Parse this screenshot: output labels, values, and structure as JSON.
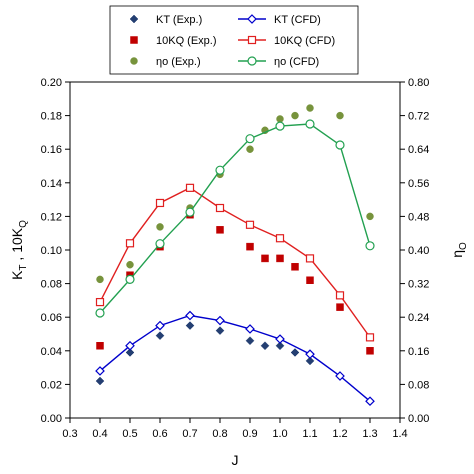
{
  "chart_data": {
    "type": "line",
    "xlabel": "J",
    "ylabel_left": "K",
    "ylabel_left_sub1": "T",
    "ylabel_left_mid": " , 10K",
    "ylabel_left_sub2": "Q",
    "ylabel_right": "η",
    "ylabel_right_sub": "O",
    "xlim": [
      0.3,
      1.4
    ],
    "ylim_left": [
      0,
      0.2
    ],
    "ylim_right": [
      0,
      0.8
    ],
    "x_ticks": [
      "0.3",
      "0.4",
      "0.5",
      "0.6",
      "0.7",
      "0.8",
      "0.9",
      "1.0",
      "1.1",
      "1.2",
      "1.3",
      "1.4"
    ],
    "y_left_ticks": [
      "0.00",
      "0.02",
      "0.04",
      "0.06",
      "0.08",
      "0.10",
      "0.12",
      "0.14",
      "0.16",
      "0.18",
      "0.20"
    ],
    "y_right_ticks": [
      "0.00",
      "0.08",
      "0.16",
      "0.24",
      "0.32",
      "0.40",
      "0.48",
      "0.56",
      "0.64",
      "0.72",
      "0.80"
    ],
    "grid": false,
    "legend_position": "top-center",
    "series": [
      {
        "name": "KT (Exp.)",
        "kind": "exp",
        "marker": "diamond",
        "color": "#243f72",
        "axis": "left",
        "x": [
          0.4,
          0.5,
          0.6,
          0.7,
          0.8,
          0.9,
          0.95,
          1.0,
          1.05,
          1.1,
          1.2,
          1.3
        ],
        "y": [
          0.022,
          0.039,
          0.049,
          0.055,
          0.052,
          0.046,
          0.043,
          0.043,
          0.039,
          0.034,
          0.025,
          0.01
        ]
      },
      {
        "name": "KT (CFD)",
        "kind": "cfd",
        "marker": "open-diamond",
        "color": "#0000cc",
        "axis": "left",
        "x": [
          0.4,
          0.5,
          0.6,
          0.7,
          0.8,
          0.9,
          1.0,
          1.1,
          1.2,
          1.3
        ],
        "y": [
          0.028,
          0.043,
          0.055,
          0.061,
          0.058,
          0.053,
          0.047,
          0.038,
          0.025,
          0.01
        ]
      },
      {
        "name": "10KQ (Exp.)",
        "kind": "exp",
        "marker": "square",
        "color": "#c00000",
        "axis": "left",
        "x": [
          0.4,
          0.5,
          0.6,
          0.7,
          0.8,
          0.9,
          0.95,
          1.0,
          1.05,
          1.1,
          1.2,
          1.3
        ],
        "y": [
          0.043,
          0.085,
          0.102,
          0.121,
          0.112,
          0.102,
          0.095,
          0.095,
          0.09,
          0.082,
          0.066,
          0.04
        ]
      },
      {
        "name": "10KQ (CFD)",
        "kind": "cfd",
        "marker": "open-square",
        "color": "#e02020",
        "axis": "left",
        "x": [
          0.4,
          0.5,
          0.6,
          0.7,
          0.8,
          0.9,
          1.0,
          1.1,
          1.2,
          1.3
        ],
        "y": [
          0.069,
          0.104,
          0.128,
          0.137,
          0.125,
          0.115,
          0.107,
          0.095,
          0.073,
          0.048
        ]
      },
      {
        "name": "ηo (Exp.)",
        "kind": "exp",
        "marker": "circle",
        "color": "#77933c",
        "axis": "right",
        "x": [
          0.4,
          0.5,
          0.6,
          0.7,
          0.8,
          0.9,
          0.95,
          1.0,
          1.05,
          1.1,
          1.2,
          1.3
        ],
        "y": [
          0.33,
          0.365,
          0.455,
          0.5,
          0.58,
          0.64,
          0.685,
          0.712,
          0.72,
          0.738,
          0.72,
          0.48
        ]
      },
      {
        "name": "ηo (CFD)",
        "kind": "cfd",
        "marker": "open-circle",
        "color": "#22a050",
        "axis": "right",
        "x": [
          0.4,
          0.5,
          0.6,
          0.7,
          0.8,
          0.9,
          1.0,
          1.1,
          1.2,
          1.3
        ],
        "y": [
          0.25,
          0.33,
          0.415,
          0.49,
          0.59,
          0.665,
          0.695,
          0.7,
          0.65,
          0.41
        ]
      }
    ]
  }
}
